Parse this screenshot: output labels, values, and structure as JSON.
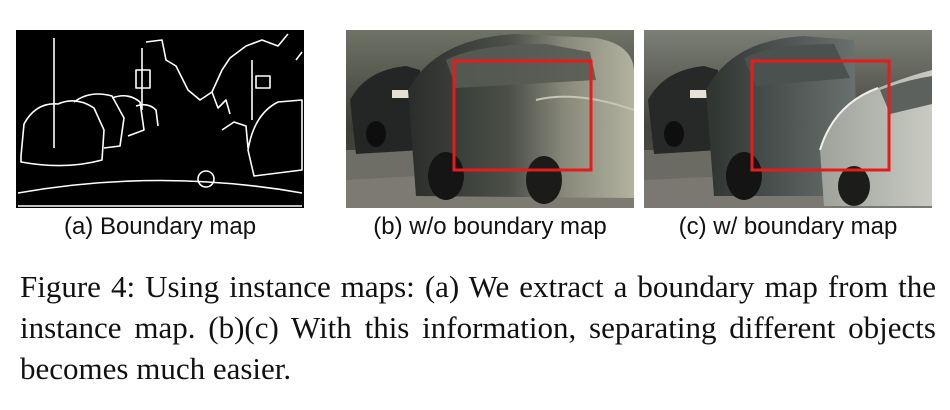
{
  "figure": {
    "panels": [
      {
        "id": "a",
        "caption": "(a) Boundary map"
      },
      {
        "id": "b",
        "caption": "(b) w/o boundary map"
      },
      {
        "id": "c",
        "caption": "(c) w/ boundary map"
      }
    ],
    "caption": "Figure 4: Using instance maps: (a) We extract a boundary map from the instance map.  (b)(c) With this information, separating different objects becomes much easier.",
    "highlight_color": "#e81a1a"
  }
}
